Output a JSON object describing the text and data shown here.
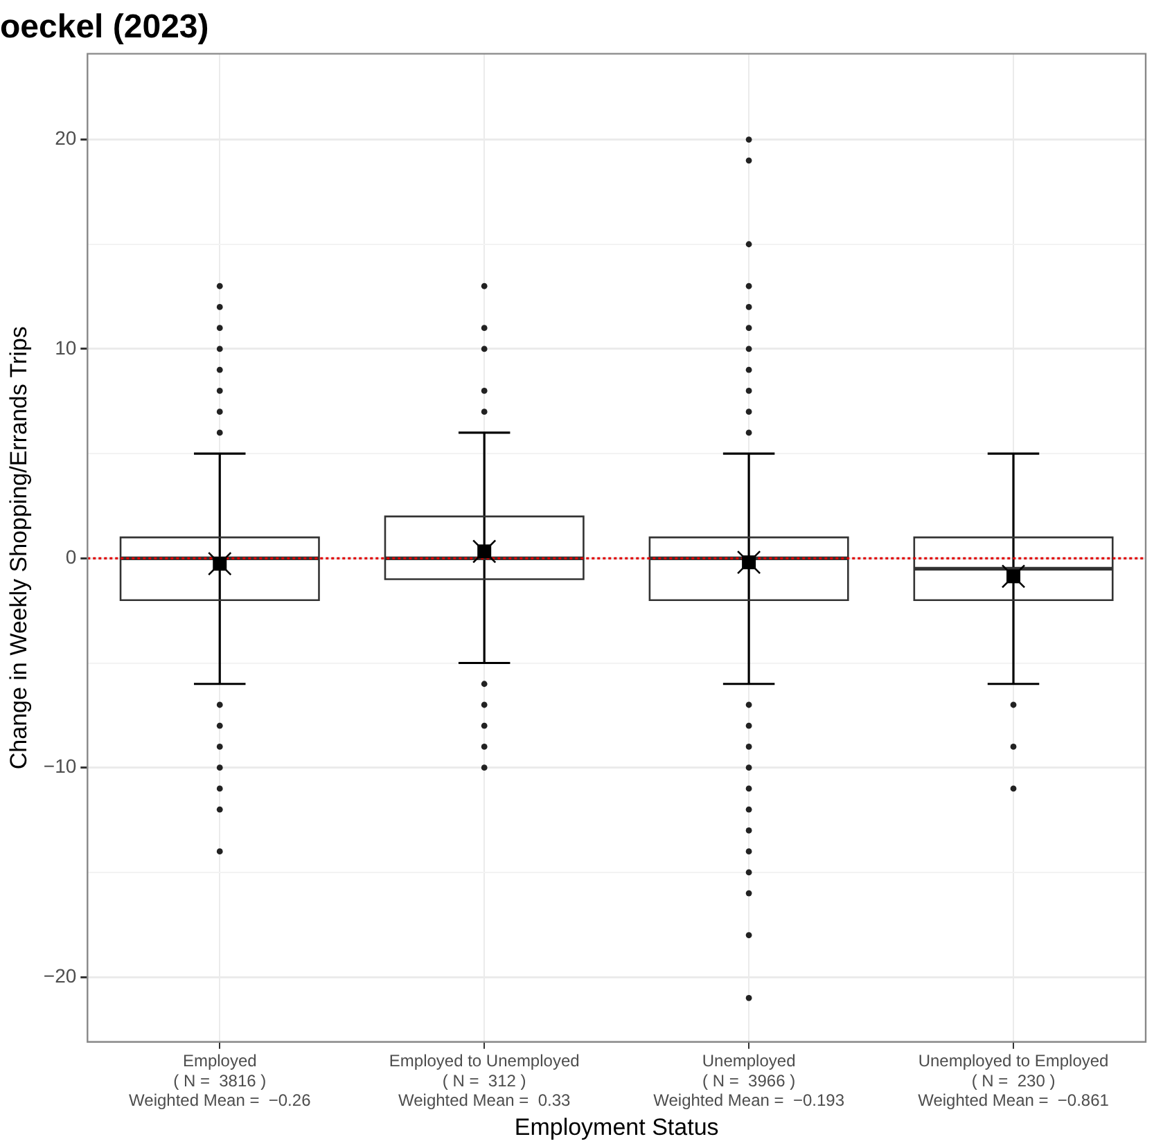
{
  "chart_data": {
    "type": "box",
    "title": "oeckel (2023)",
    "xlabel": "Employment Status",
    "ylabel": "Change in Weekly Shopping/Errands Trips",
    "categories": [
      "Employed\n( N =  3816 )\nWeighted Mean =  −0.26",
      "Employed to Unemployed\n( N =  312 )\nWeighted Mean =  0.33",
      "Unemployed\n( N =  3966 )\nWeighted Mean =  −0.193",
      "Unemployed to Employed\n( N =  230 )\nWeighted Mean =  −0.861"
    ],
    "boxes": [
      {
        "low": -6,
        "q1": -2,
        "median": 0,
        "q3": 1,
        "high": 5,
        "mean": -0.26,
        "outliers": [
          6,
          7,
          8,
          9,
          10,
          11,
          12,
          13,
          -7,
          -8,
          -9,
          -10,
          -11,
          -12,
          -14
        ]
      },
      {
        "low": -5,
        "q1": -1,
        "median": 0,
        "q3": 2,
        "high": 6,
        "mean": 0.33,
        "outliers": [
          7,
          8,
          10,
          11,
          13,
          -6,
          -7,
          -8,
          -9,
          -10
        ]
      },
      {
        "low": -6,
        "q1": -2,
        "median": 0,
        "q3": 1,
        "high": 5,
        "mean": -0.193,
        "outliers": [
          6,
          7,
          8,
          9,
          10,
          11,
          12,
          13,
          15,
          19,
          20,
          -7,
          -8,
          -9,
          -10,
          -11,
          -12,
          -13,
          -14,
          -15,
          -16,
          -18,
          -21
        ]
      },
      {
        "low": -6,
        "q1": -2,
        "median": -0.5,
        "q3": 1,
        "high": 5,
        "mean": -0.861,
        "outliers": [
          -7,
          -9,
          -11
        ]
      }
    ],
    "ylim": [
      -23.1,
      24.1
    ],
    "yticks": [
      -20,
      {
        "value": -15,
        "label": null
      },
      -10,
      {
        "value": -5,
        "label": null
      },
      0,
      {
        "value": 5,
        "label": null
      },
      10,
      {
        "value": 15,
        "label": null
      },
      20
    ],
    "ref_lines": [
      {
        "axis": "y",
        "value": 0,
        "label": null,
        "color": "#e00000",
        "line_style": "dotted"
      }
    ],
    "grid": true,
    "legend": false
  }
}
